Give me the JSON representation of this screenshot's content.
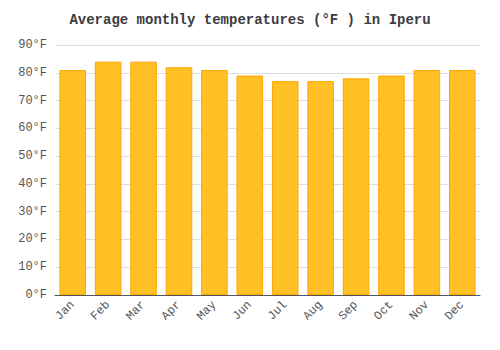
{
  "chart_data": {
    "type": "bar",
    "title": "Average monthly temperatures (°F ) in Iperu",
    "categories": [
      "Jan",
      "Feb",
      "Mar",
      "Apr",
      "May",
      "Jun",
      "Jul",
      "Aug",
      "Sep",
      "Oct",
      "Nov",
      "Dec"
    ],
    "values": [
      81,
      84,
      84,
      82,
      81,
      79,
      77,
      77,
      78,
      79,
      81,
      81
    ],
    "color": "#FFC125",
    "ylim": [
      0,
      90
    ],
    "yticks": [
      {
        "value": 0,
        "label": "0°F"
      },
      {
        "value": 10,
        "label": "10°F"
      },
      {
        "value": 20,
        "label": "20°F"
      },
      {
        "value": 30,
        "label": "30°F"
      },
      {
        "value": 40,
        "label": "40°F"
      },
      {
        "value": 50,
        "label": "50°F"
      },
      {
        "value": 60,
        "label": "60°F"
      },
      {
        "value": 70,
        "label": "70°F"
      },
      {
        "value": 80,
        "label": "80°F"
      },
      {
        "value": 90,
        "label": "90°F"
      }
    ],
    "grid": true
  }
}
